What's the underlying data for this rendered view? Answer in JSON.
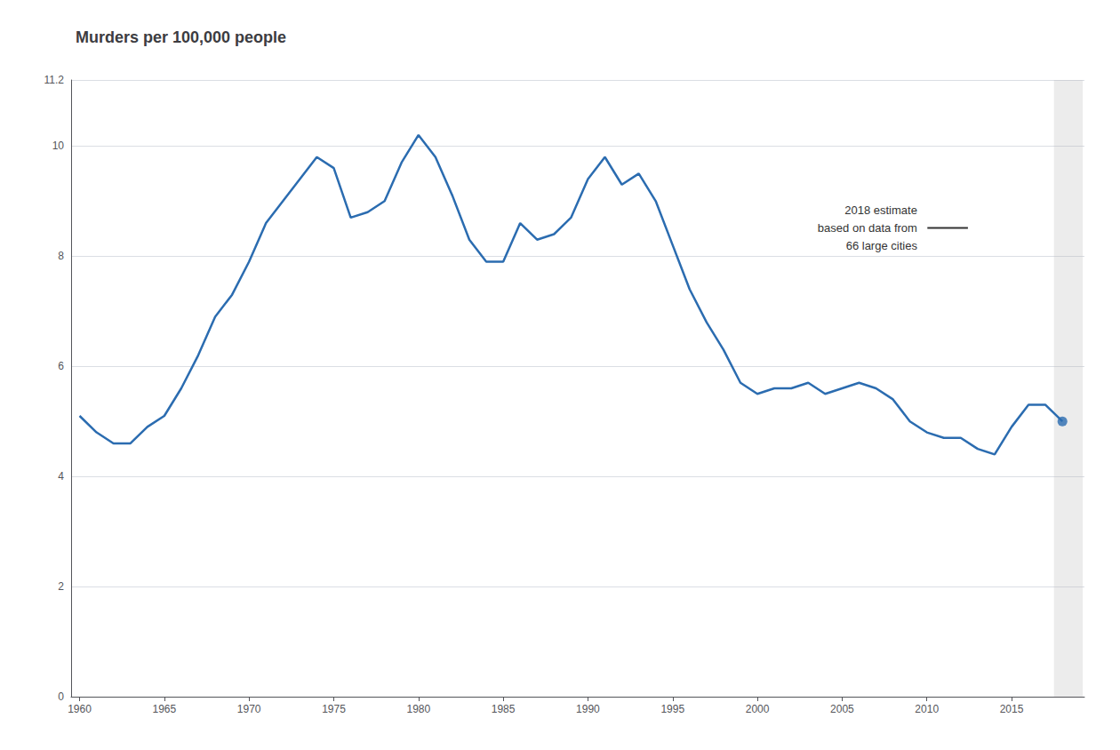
{
  "chart_data": {
    "type": "line",
    "title": "Murders per 100,000 people",
    "x": [
      1960,
      1961,
      1962,
      1963,
      1964,
      1965,
      1966,
      1967,
      1968,
      1969,
      1970,
      1971,
      1972,
      1973,
      1974,
      1975,
      1976,
      1977,
      1978,
      1979,
      1980,
      1981,
      1982,
      1983,
      1984,
      1985,
      1986,
      1987,
      1988,
      1989,
      1990,
      1991,
      1992,
      1993,
      1994,
      1995,
      1996,
      1997,
      1998,
      1999,
      2000,
      2001,
      2002,
      2003,
      2004,
      2005,
      2006,
      2007,
      2008,
      2009,
      2010,
      2011,
      2012,
      2013,
      2014,
      2015,
      2016,
      2017,
      2018
    ],
    "values": [
      5.1,
      4.8,
      4.6,
      4.6,
      4.9,
      5.1,
      5.6,
      6.2,
      6.9,
      7.3,
      7.9,
      8.6,
      9.0,
      9.4,
      9.8,
      9.6,
      8.7,
      8.8,
      9.0,
      9.7,
      10.2,
      9.8,
      9.1,
      8.3,
      7.9,
      7.9,
      8.6,
      8.3,
      8.4,
      8.7,
      9.4,
      9.8,
      9.3,
      9.5,
      9.0,
      8.2,
      7.4,
      6.8,
      6.3,
      5.7,
      5.5,
      5.6,
      5.6,
      5.7,
      5.5,
      5.6,
      5.7,
      5.6,
      5.4,
      5.0,
      4.8,
      4.7,
      4.7,
      4.5,
      4.4,
      4.9,
      5.3,
      5.3,
      5.0
    ],
    "color": "#2b6cb0",
    "highlight": {
      "x": 2018,
      "y": 5.0
    },
    "shaded_range": [
      2017.5,
      2019.2
    ],
    "annotation": "2018 estimate\nbased on data from\n66 large cities",
    "xlim": [
      1959.5,
      2019.3
    ],
    "xticks": [
      1960,
      1965,
      1970,
      1975,
      1980,
      1985,
      1990,
      1995,
      2000,
      2005,
      2010,
      2015
    ],
    "ylim": [
      0,
      11.2
    ],
    "yticks": [
      0,
      2,
      4,
      6,
      8,
      10
    ],
    "grid": true
  }
}
